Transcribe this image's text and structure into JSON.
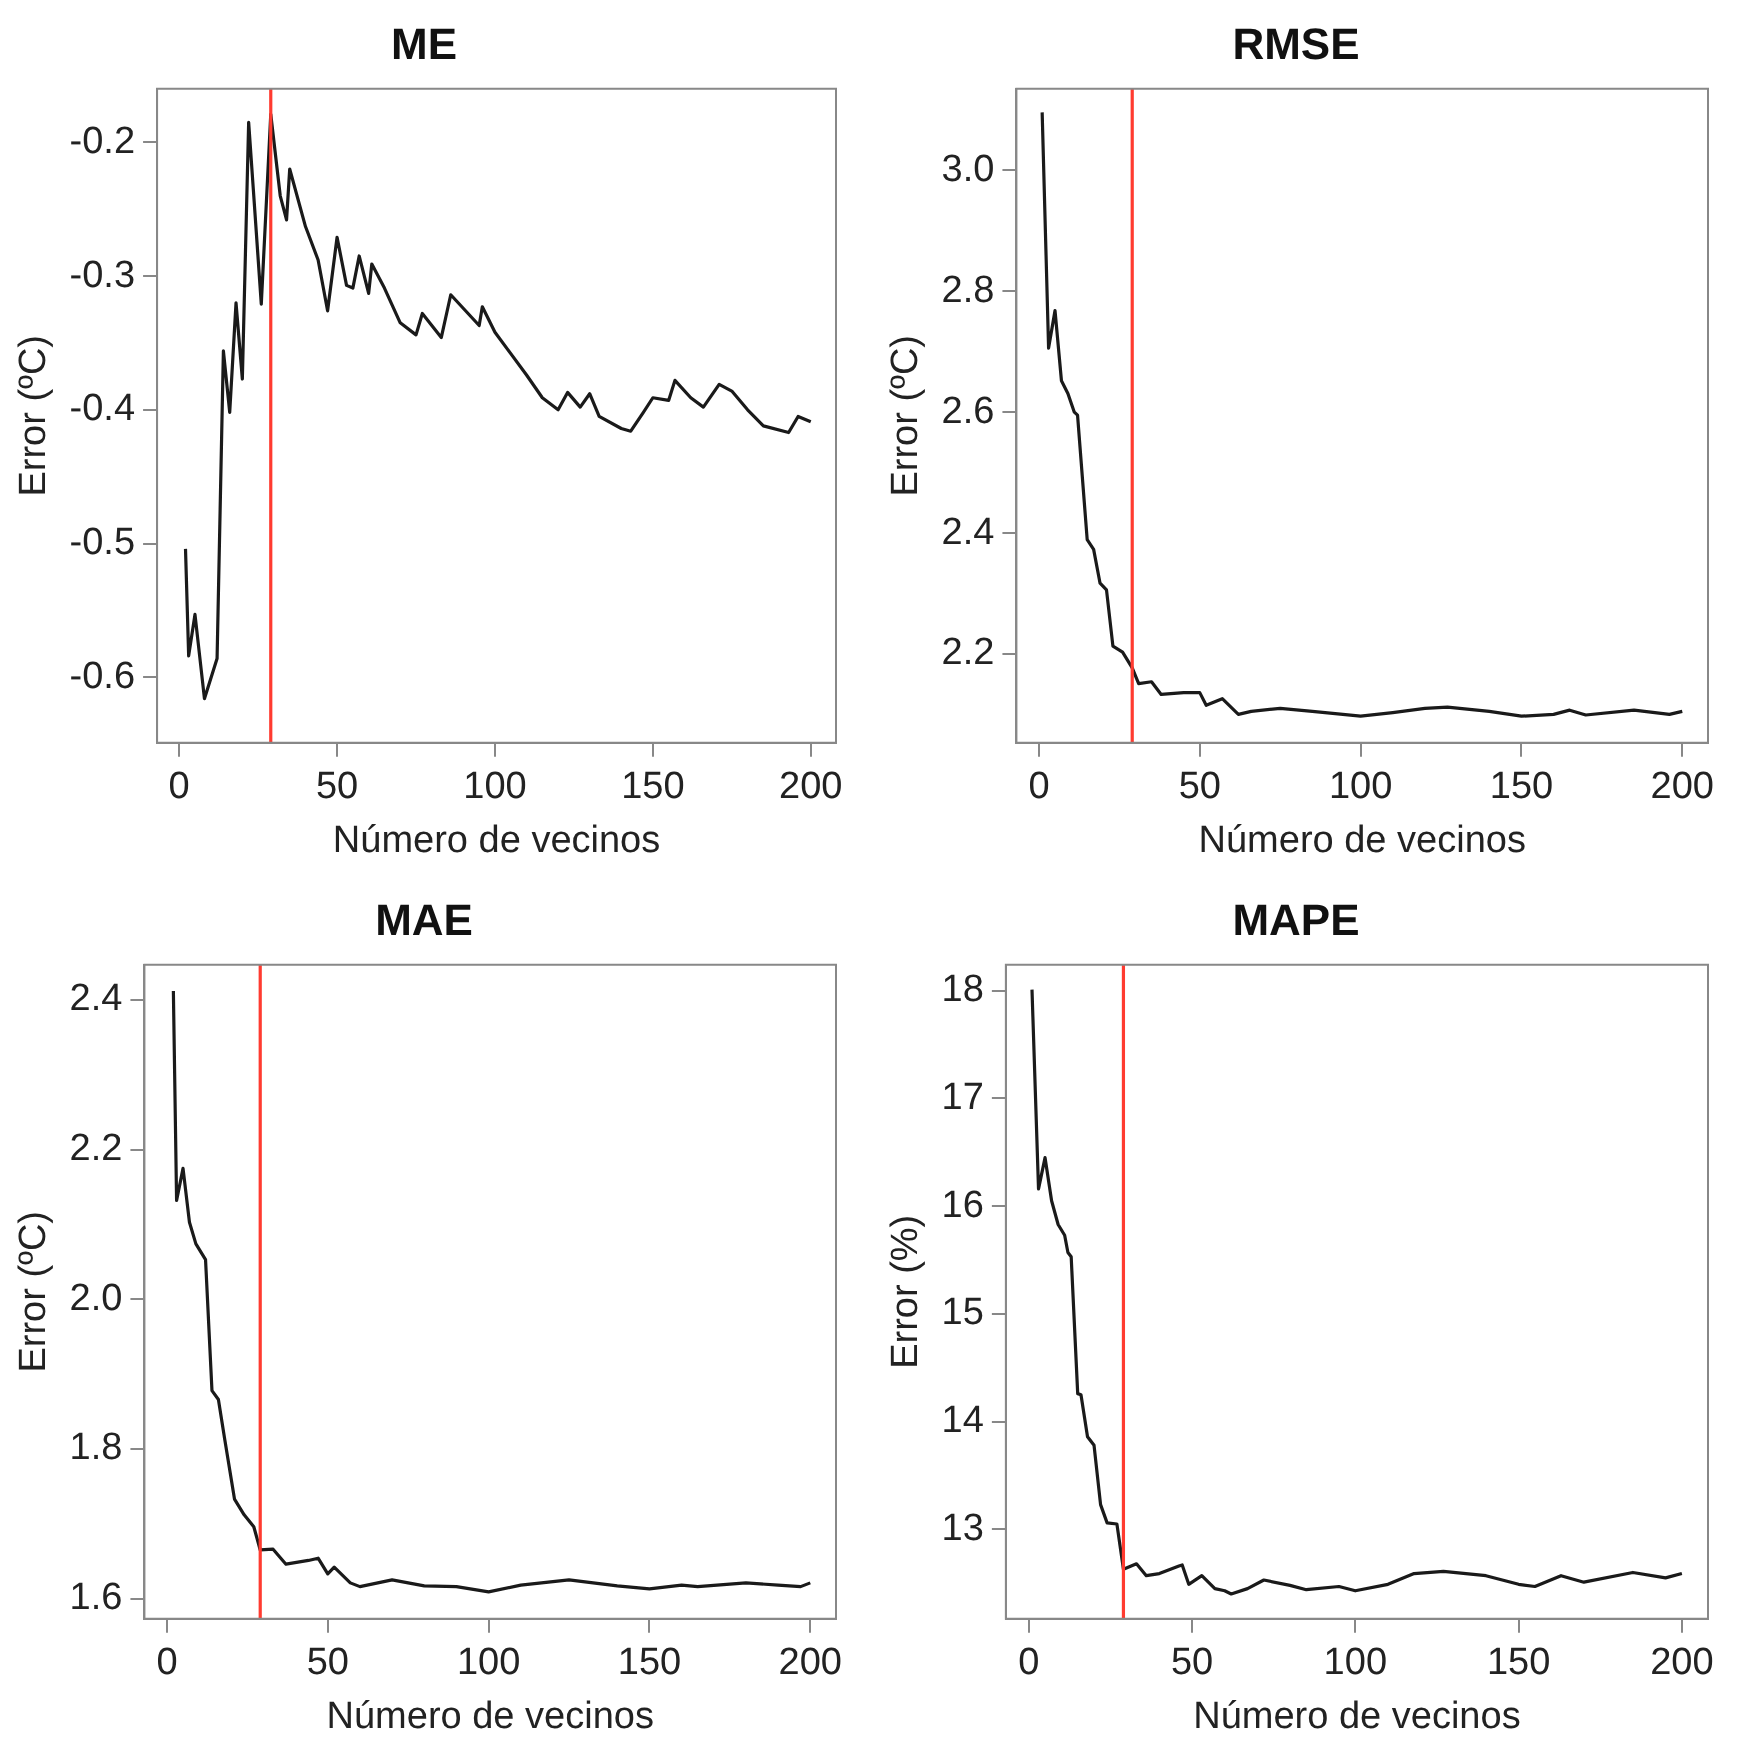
{
  "chart_data": [
    {
      "type": "line",
      "title": "ME",
      "xlabel": "Número de vecinos",
      "ylabel": "Error (ºC)",
      "marker": "none",
      "xlim": [
        -7,
        208
      ],
      "ylim": [
        -0.649,
        -0.16
      ],
      "xticks": [
        0,
        50,
        100,
        150,
        200
      ],
      "yticks": [
        -0.6,
        -0.5,
        -0.4,
        -0.3,
        -0.2
      ],
      "ref_lines": [
        {
          "axis": "x",
          "value": 29,
          "color": "#ff3b30"
        }
      ],
      "series": [
        {
          "color": "#1a1a1a",
          "x": [
            2,
            3,
            5,
            8,
            12,
            14,
            16,
            18,
            20,
            22,
            26,
            29,
            32,
            34,
            35,
            40,
            44,
            47,
            50,
            53,
            55,
            57,
            60,
            61,
            65,
            70,
            75,
            77,
            83,
            86,
            95,
            96,
            100,
            110,
            115,
            120,
            123,
            127,
            130,
            133,
            140,
            143,
            147,
            150,
            155,
            157,
            162,
            166,
            171,
            175,
            180,
            185,
            193,
            196,
            200
          ],
          "values": [
            -0.504,
            -0.584,
            -0.553,
            -0.616,
            -0.586,
            -0.356,
            -0.402,
            -0.32,
            -0.377,
            -0.185,
            -0.321,
            -0.179,
            -0.24,
            -0.258,
            -0.22,
            -0.263,
            -0.288,
            -0.326,
            -0.271,
            -0.307,
            -0.309,
            -0.285,
            -0.313,
            -0.291,
            -0.309,
            -0.335,
            -0.344,
            -0.328,
            -0.346,
            -0.314,
            -0.337,
            -0.323,
            -0.342,
            -0.374,
            -0.391,
            -0.4,
            -0.387,
            -0.398,
            -0.388,
            -0.405,
            -0.414,
            -0.416,
            -0.402,
            -0.391,
            -0.393,
            -0.378,
            -0.391,
            -0.398,
            -0.381,
            -0.386,
            -0.4,
            -0.412,
            -0.417,
            -0.405,
            -0.409
          ]
        }
      ]
    },
    {
      "type": "line",
      "title": "RMSE",
      "xlabel": "Número de vecinos",
      "ylabel": "Error (ºC)",
      "marker": "none",
      "xlim": [
        -7,
        208
      ],
      "ylim": [
        2.053,
        3.135
      ],
      "xticks": [
        0,
        50,
        100,
        150,
        200
      ],
      "yticks": [
        2.2,
        2.4,
        2.6,
        2.8,
        {
          "value": 3,
          "label": "3.0"
        }
      ],
      "ref_lines": [
        {
          "axis": "x",
          "value": 29,
          "color": "#ff3b30"
        }
      ],
      "series": [
        {
          "color": "#1a1a1a",
          "x": [
            1,
            3,
            5,
            7,
            9,
            11,
            12,
            15,
            17,
            19,
            21,
            23,
            26,
            29,
            31,
            35,
            38,
            45,
            50,
            52,
            57,
            62,
            66,
            75,
            85,
            100,
            110,
            120,
            127,
            140,
            150,
            160,
            165,
            170,
            185,
            196,
            200
          ],
          "values": [
            3.096,
            2.706,
            2.768,
            2.652,
            2.631,
            2.6,
            2.595,
            2.389,
            2.373,
            2.317,
            2.306,
            2.213,
            2.203,
            2.177,
            2.151,
            2.154,
            2.133,
            2.136,
            2.136,
            2.115,
            2.126,
            2.1,
            2.105,
            2.11,
            2.105,
            2.097,
            2.103,
            2.11,
            2.112,
            2.105,
            2.097,
            2.1,
            2.107,
            2.099,
            2.107,
            2.1,
            2.105
          ]
        }
      ]
    },
    {
      "type": "line",
      "title": "MAE",
      "xlabel": "Número de vecinos",
      "ylabel": "Error (ºC)",
      "marker": "none",
      "xlim": [
        -7,
        208
      ],
      "ylim": [
        1.573,
        2.447
      ],
      "xticks": [
        0,
        50,
        100,
        150,
        200
      ],
      "yticks": [
        1.6,
        1.8,
        {
          "value": 2,
          "label": "2.0"
        },
        2.2,
        2.4
      ],
      "ref_lines": [
        {
          "axis": "x",
          "value": 29,
          "color": "#ff3b30"
        }
      ],
      "series": [
        {
          "color": "#1a1a1a",
          "x": [
            2,
            3,
            5,
            7,
            9,
            12,
            14,
            16,
            18,
            21,
            24,
            27,
            29,
            33,
            37,
            44,
            47,
            50,
            52,
            57,
            60,
            70,
            80,
            90,
            100,
            110,
            125,
            140,
            150,
            160,
            165,
            180,
            190,
            197,
            200
          ],
          "values": [
            2.412,
            2.132,
            2.175,
            2.103,
            2.074,
            2.053,
            1.878,
            1.866,
            1.812,
            1.733,
            1.712,
            1.696,
            1.665,
            1.666,
            1.646,
            1.651,
            1.654,
            1.633,
            1.642,
            1.621,
            1.616,
            1.625,
            1.617,
            1.616,
            1.609,
            1.618,
            1.625,
            1.617,
            1.613,
            1.618,
            1.616,
            1.621,
            1.618,
            1.616,
            1.621
          ]
        }
      ]
    },
    {
      "type": "line",
      "title": "MAPE",
      "xlabel": "Número de vecinos",
      "ylabel": "Error (%)",
      "marker": "none",
      "xlim": [
        -7,
        208
      ],
      "ylim": [
        12.17,
        18.24
      ],
      "xticks": [
        0,
        50,
        100,
        150,
        200
      ],
      "yticks": [
        13,
        14,
        15,
        16,
        17,
        18
      ],
      "ref_lines": [
        {
          "axis": "x",
          "value": 29,
          "color": "#ff3b30"
        }
      ],
      "series": [
        {
          "color": "#1a1a1a",
          "x": [
            1,
            3,
            5,
            7,
            9,
            11,
            12,
            13,
            15,
            16,
            18,
            20,
            22,
            24,
            27,
            29,
            33,
            36,
            40,
            46,
            47,
            49,
            53,
            57,
            60,
            62,
            67,
            72,
            80,
            85,
            95,
            100,
            110,
            118,
            127,
            140,
            150,
            155,
            163,
            170,
            185,
            195,
            200
          ],
          "values": [
            18.01,
            16.16,
            16.45,
            16.05,
            15.83,
            15.73,
            15.57,
            15.53,
            14.26,
            14.25,
            13.86,
            13.78,
            13.23,
            13.06,
            13.05,
            12.63,
            12.68,
            12.57,
            12.59,
            12.66,
            12.67,
            12.49,
            12.57,
            12.45,
            12.43,
            12.4,
            12.45,
            12.53,
            12.48,
            12.44,
            12.47,
            12.43,
            12.49,
            12.59,
            12.61,
            12.57,
            12.49,
            12.47,
            12.57,
            12.51,
            12.6,
            12.55,
            12.59
          ]
        }
      ]
    }
  ]
}
